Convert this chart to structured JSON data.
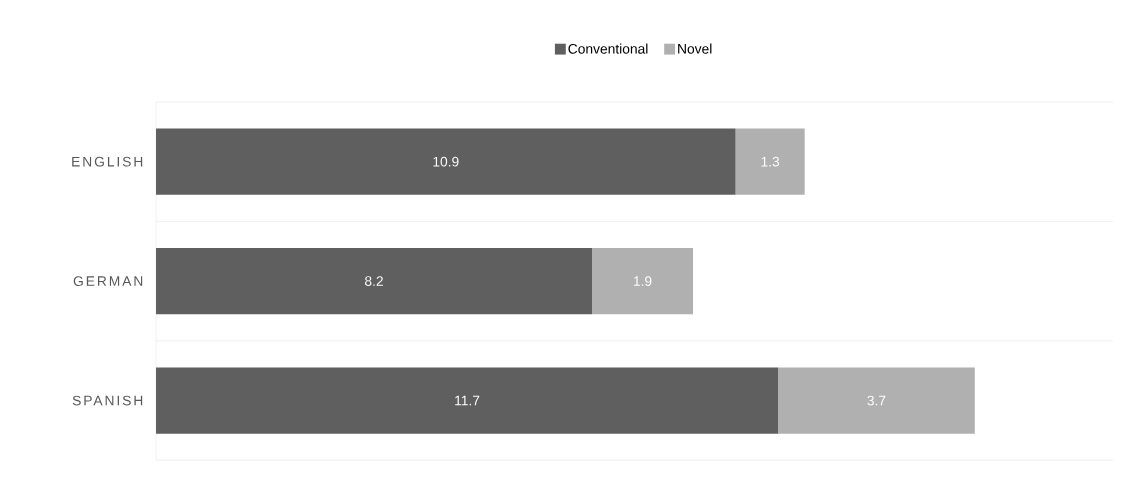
{
  "chart_data": {
    "type": "bar",
    "orientation": "horizontal",
    "stacked": true,
    "categories": [
      "ENGLISH",
      "GERMAN",
      "SPANISH"
    ],
    "series": [
      {
        "name": "Conventional",
        "color": "#5f5f5f",
        "values": [
          10.9,
          8.2,
          11.7
        ]
      },
      {
        "name": "Novel",
        "color": "#b0b0b0",
        "values": [
          1.3,
          1.9,
          3.7
        ]
      }
    ],
    "data_labels": true,
    "grid": "y",
    "legend": "top",
    "tick_labels": "y"
  }
}
